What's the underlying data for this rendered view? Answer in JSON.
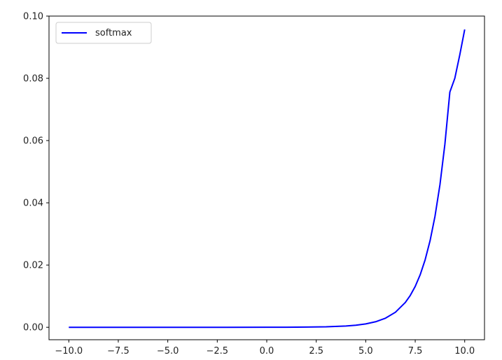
{
  "chart_data": {
    "type": "line",
    "title": "",
    "xlabel": "",
    "ylabel": "",
    "xlim": [
      -11.0,
      11.0
    ],
    "ylim": [
      -0.004,
      0.1
    ],
    "xticks": [
      "−10.0",
      "−7.5",
      "−5.0",
      "−2.5",
      "0.0",
      "2.5",
      "5.0",
      "7.5",
      "10.0"
    ],
    "xtick_values": [
      -10.0,
      -7.5,
      -5.0,
      -2.5,
      0.0,
      2.5,
      5.0,
      7.5,
      10.0
    ],
    "yticks": [
      "0.00",
      "0.02",
      "0.04",
      "0.06",
      "0.08",
      "0.10"
    ],
    "ytick_values": [
      0.0,
      0.02,
      0.04,
      0.06,
      0.08,
      0.1
    ],
    "grid": false,
    "legend_position": "top-left",
    "series": [
      {
        "name": "softmax",
        "color": "#0000ff",
        "x": [
          -10.0,
          -8.0,
          -6.0,
          -4.0,
          -2.0,
          0.0,
          1.0,
          2.0,
          3.0,
          4.0,
          4.5,
          5.0,
          5.5,
          6.0,
          6.5,
          7.0,
          7.25,
          7.5,
          7.75,
          8.0,
          8.25,
          8.5,
          8.75,
          9.0,
          9.25,
          9.5,
          9.75,
          10.0
        ],
        "y": [
          0.0,
          0.0,
          0.0,
          0.0,
          0.0,
          1e-05,
          2e-05,
          6e-05,
          0.00015,
          0.0004,
          0.00065,
          0.00108,
          0.00178,
          0.00293,
          0.00483,
          0.00797,
          0.01023,
          0.01313,
          0.01686,
          0.02165,
          0.0278,
          0.0357,
          0.04584,
          0.05886,
          0.07558,
          0.08,
          0.0875,
          0.0957
        ]
      }
    ]
  }
}
